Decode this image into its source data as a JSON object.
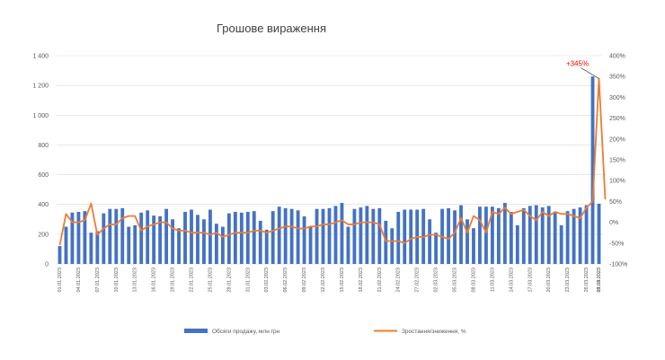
{
  "chart_data": {
    "type": "bar-line combo",
    "title": "Грошове вираження",
    "colors": {
      "bars": "#4472c4",
      "line": "#ed7d31",
      "annotation": "#ff0000",
      "grid": "#d9d9d9"
    },
    "y_left": {
      "range": [
        0,
        1400
      ],
      "ticks": [
        "0",
        "200",
        "400",
        "600",
        "800",
        "1 000",
        "1 200",
        "1 400"
      ]
    },
    "y_right": {
      "range": [
        -100,
        400
      ],
      "ticks": [
        "-100%",
        "-50%",
        "0%",
        "50%",
        "100%",
        "150%",
        "200%",
        "250%",
        "300%",
        "350%",
        "400%"
      ]
    },
    "x_tick_labels": [
      "01.01.2023",
      "04.01.2023",
      "07.01.2023",
      "10.01.2023",
      "13.01.2023",
      "16.01.2023",
      "19.01.2023",
      "22.01.2023",
      "25.01.2023",
      "28.01.2023",
      "31.01.2023",
      "03.02.2023",
      "06.02.2023",
      "09.02.2023",
      "12.02.2023",
      "15.02.2023",
      "18.02.2023",
      "21.02.2023",
      "24.02.2023",
      "27.02.2023",
      "02.03.2023",
      "05.03.2023",
      "08.03.2023",
      "11.03.2023",
      "14.03.2023",
      "17.03.2023",
      "20.03.2023",
      "23.03.2023",
      "26.03.2023",
      "29.03.2023",
      "01.04.2023"
    ],
    "series": [
      {
        "name": "Обсяги продажу, млн грн",
        "type": "bar",
        "values": [
          120,
          250,
          345,
          350,
          355,
          210,
          220,
          340,
          370,
          370,
          375,
          250,
          260,
          345,
          360,
          325,
          320,
          370,
          300,
          240,
          350,
          365,
          330,
          300,
          365,
          270,
          250,
          340,
          350,
          345,
          350,
          355,
          290,
          230,
          355,
          385,
          375,
          370,
          360,
          320,
          250,
          370,
          370,
          375,
          390,
          410,
          250,
          370,
          380,
          390,
          370,
          375,
          290,
          240,
          350,
          365,
          365,
          365,
          370,
          300,
          210,
          370,
          375,
          360,
          395,
          300,
          240,
          385,
          385,
          385,
          375,
          410,
          350,
          260,
          375,
          390,
          395,
          380,
          390,
          350,
          260,
          355,
          370,
          380,
          395,
          1260,
          405
        ]
      },
      {
        "name": "Зростання/зниження, %",
        "type": "line",
        "values": [
          -55,
          20,
          0,
          0,
          5,
          45,
          -30,
          -15,
          -5,
          -5,
          10,
          15,
          15,
          -20,
          -10,
          -5,
          0,
          0,
          -15,
          -20,
          -20,
          -25,
          -25,
          -25,
          -30,
          -25,
          -35,
          -30,
          -25,
          -25,
          -25,
          -20,
          -20,
          -25,
          -20,
          -15,
          -10,
          -10,
          -15,
          -15,
          -10,
          -10,
          -5,
          -5,
          0,
          5,
          -5,
          -5,
          0,
          0,
          0,
          -5,
          -45,
          -45,
          -45,
          -50,
          -40,
          -35,
          -35,
          -30,
          -30,
          -35,
          -40,
          -25,
          10,
          -25,
          15,
          5,
          -25,
          25,
          20,
          35,
          20,
          25,
          30,
          15,
          5,
          25,
          15,
          25,
          20,
          20,
          15,
          10,
          35,
          50,
          345,
          55
        ]
      }
    ],
    "annotations": [
      {
        "text": "+345%"
      }
    ],
    "legend_position": "bottom"
  }
}
